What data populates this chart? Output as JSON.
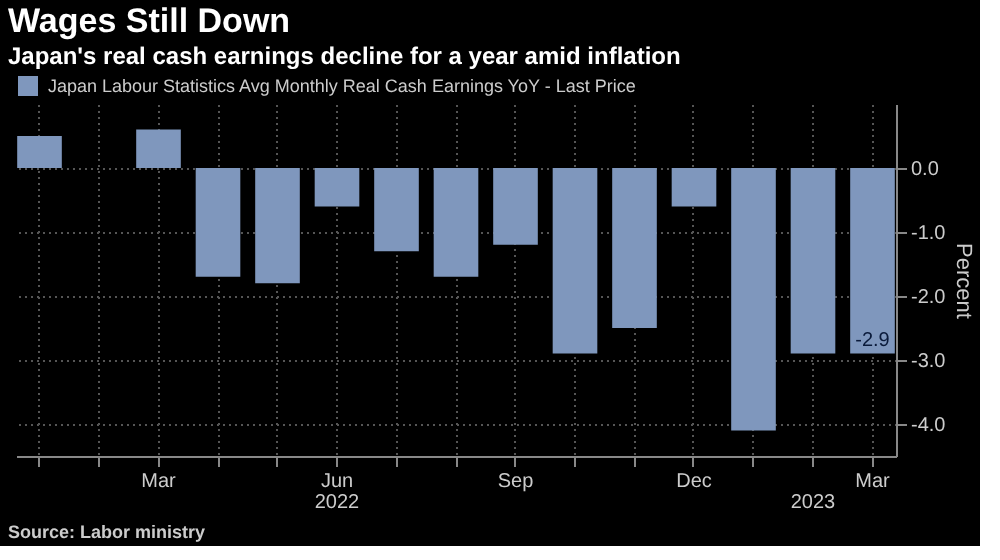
{
  "chart_data": {
    "type": "bar",
    "title": "Wages Still Down",
    "subtitle": "Japan's real cash earnings decline for a year amid inflation",
    "ylabel": "Percent",
    "categories": [
      null,
      null,
      "Mar",
      null,
      null,
      "Jun",
      null,
      null,
      "Sep",
      null,
      null,
      "Dec",
      null,
      null,
      "Mar"
    ],
    "series": [
      {
        "name": "Japan Labour Statistics Avg Monthly Real Cash Earnings YoY - Last Price",
        "color": "#7f97bd",
        "values": [
          0.5,
          0.0,
          0.6,
          -1.7,
          -1.8,
          -0.6,
          -1.3,
          -1.7,
          -1.2,
          -2.9,
          -2.5,
          -0.6,
          -4.1,
          -2.9,
          -2.9
        ],
        "value_labels": [
          null,
          null,
          null,
          null,
          null,
          null,
          null,
          null,
          null,
          null,
          null,
          null,
          null,
          null,
          "-2.9"
        ]
      }
    ],
    "ylim": [
      -4.5,
      1.0
    ],
    "yticks": [
      {
        "value": 0,
        "label": "0.0"
      },
      {
        "value": -1,
        "label": "-1.0"
      },
      {
        "value": -2,
        "label": "-2.0"
      },
      {
        "value": -3,
        "label": "-3.0"
      },
      {
        "value": -4,
        "label": "-4.0"
      }
    ],
    "grid": true,
    "legend": "top left",
    "annotations": [
      "2022",
      "2023",
      "Source: Labor ministry"
    ]
  }
}
